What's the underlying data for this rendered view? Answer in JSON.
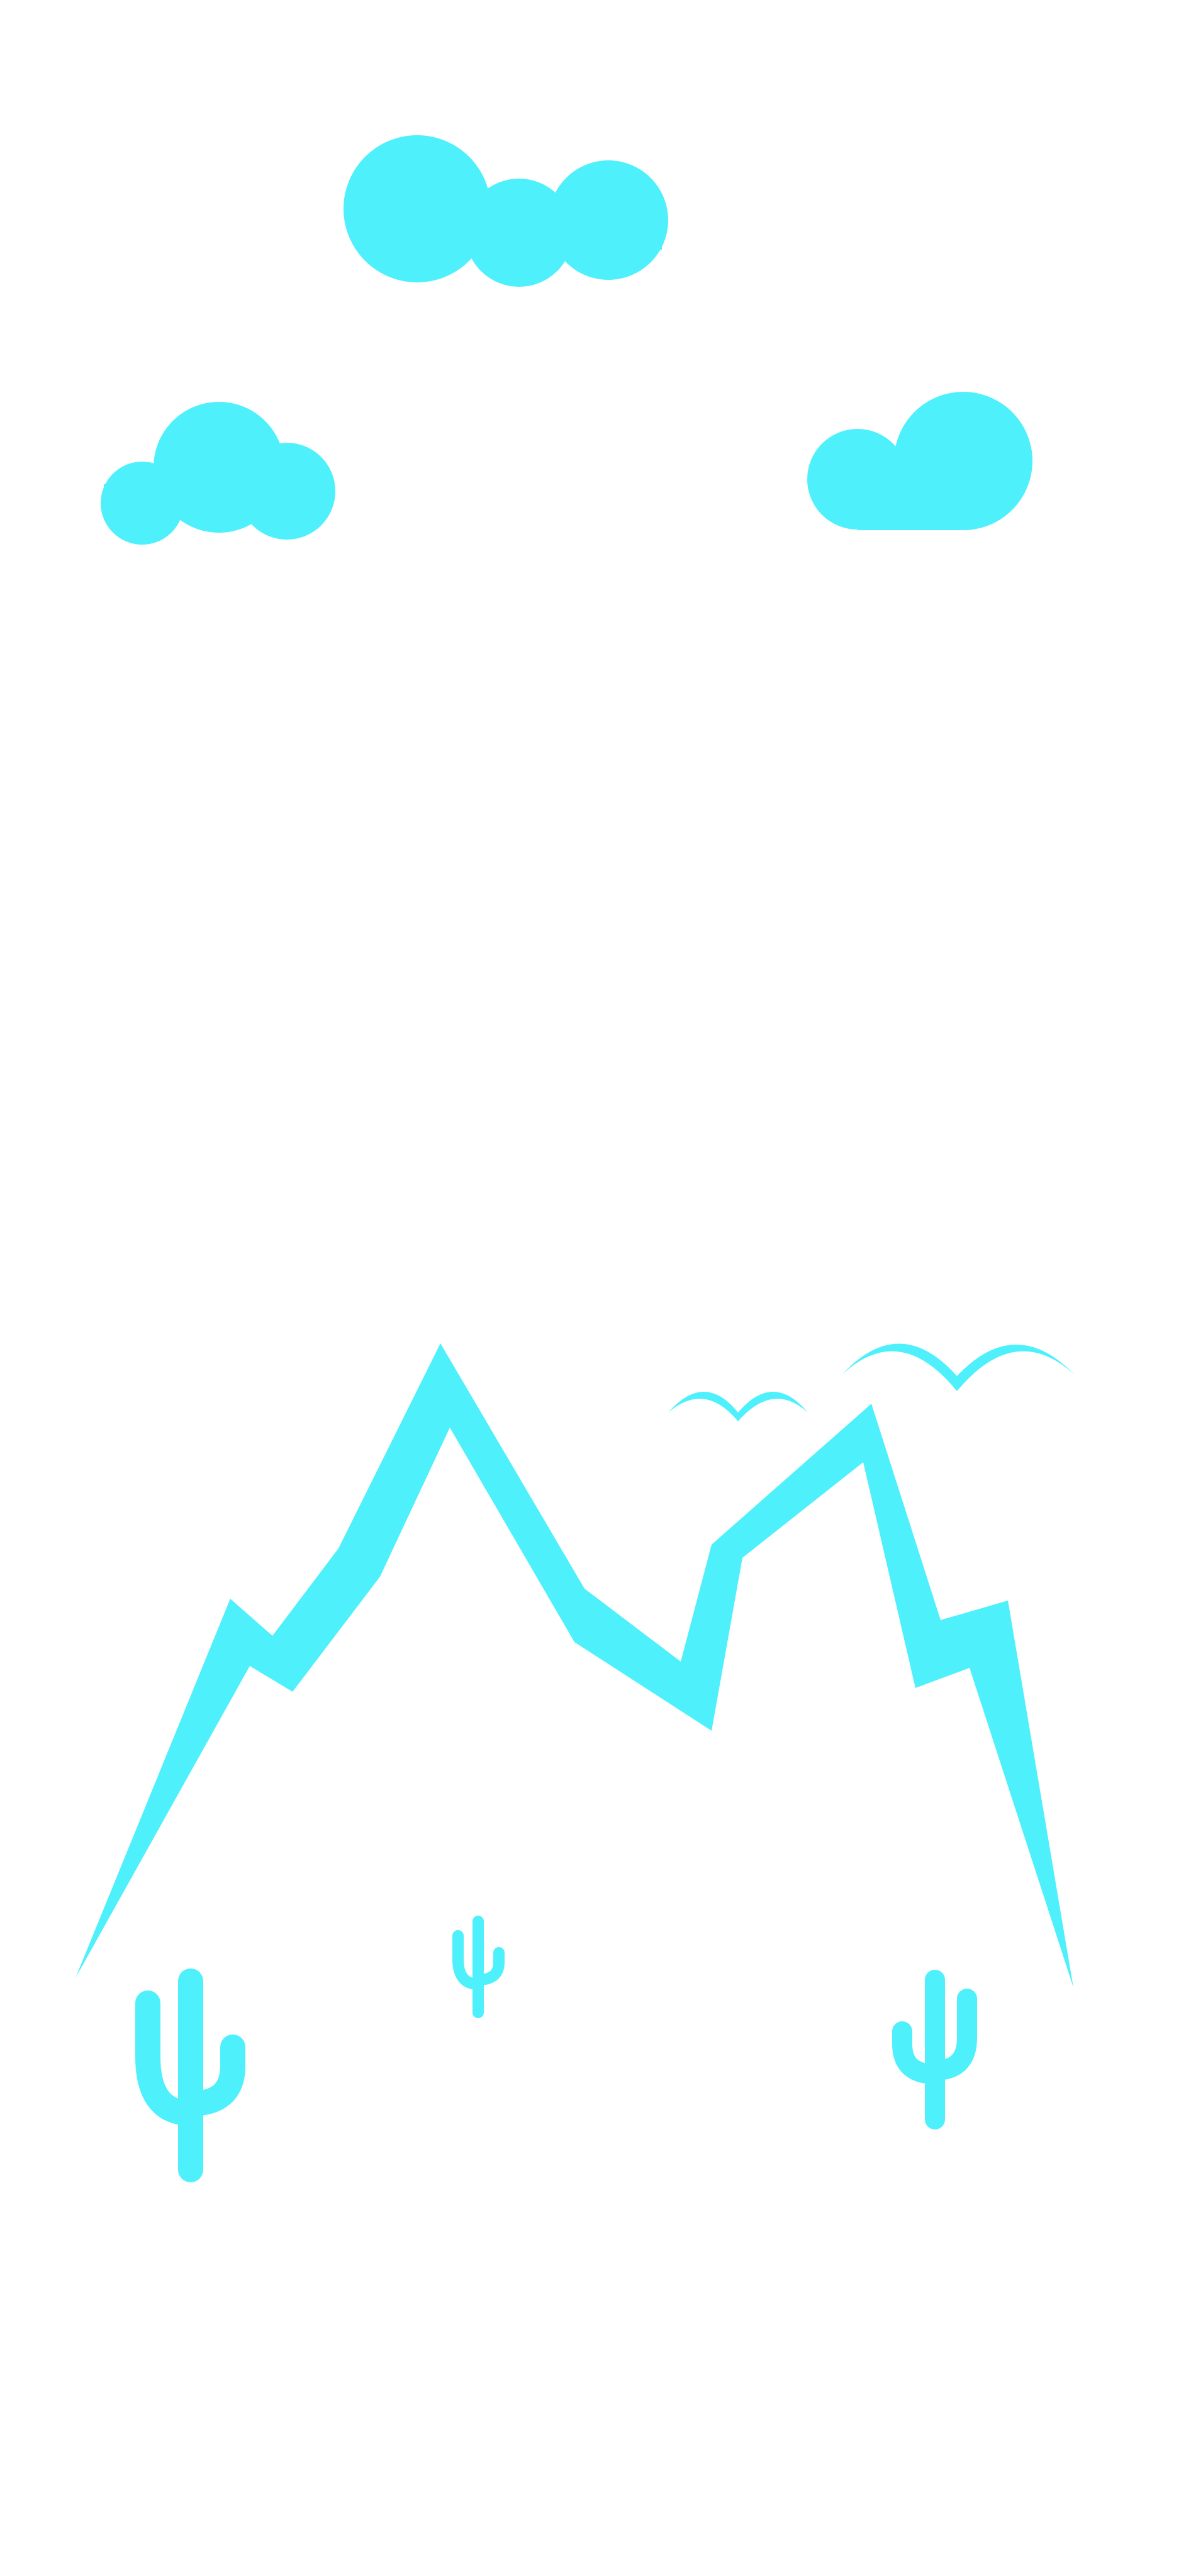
{
  "palette": {
    "accent": "#4ef0fc",
    "background": "#ffffff"
  },
  "illustration": {
    "subject": "desert-mountain-landscape",
    "elements": [
      "cloud-icon",
      "mountain-outline",
      "bird-icon",
      "cactus-icon"
    ]
  }
}
